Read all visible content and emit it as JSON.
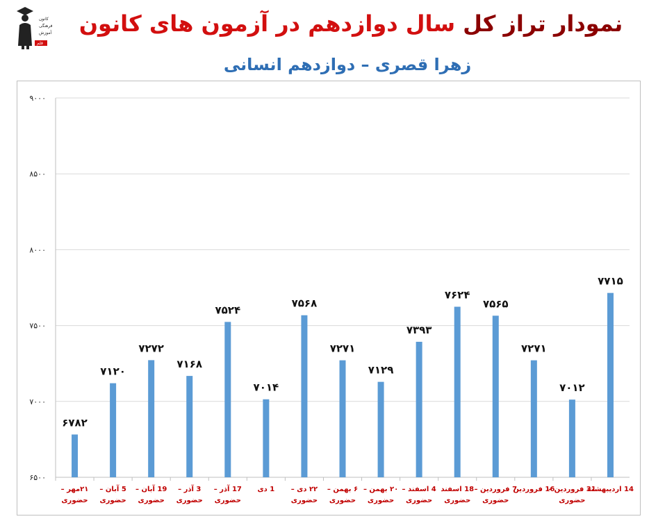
{
  "header": {
    "title_part1": "نمودار تراز کل",
    "title_part2": "سال دوازدهم در آزمون های کانون",
    "subtitle": "زهرا قصری – دوازدهم انسانی"
  },
  "logo": {
    "line1": "کانون",
    "line2": "فرهنگی",
    "line3": "آموزش",
    "badge": "قلم چی"
  },
  "colors": {
    "bar": "#5b9bd5",
    "axis_label": "#c00000",
    "title": "#d20f0f",
    "subtitle": "#2e6eb4",
    "grid": "#d9d9d9"
  },
  "chart_data": {
    "type": "bar",
    "title": "نمودار تراز کل سال دوازدهم در آزمون های کانون",
    "subtitle": "زهرا قصری – دوازدهم انسانی",
    "ylim": [
      6500,
      9000
    ],
    "yticks": [
      "۶۵۰۰",
      "۷۰۰۰",
      "۷۵۰۰",
      "۸۰۰۰",
      "۸۵۰۰",
      "۹۰۰۰"
    ],
    "ytick_values": [
      6500,
      7000,
      7500,
      8000,
      8500,
      9000
    ],
    "grid": true,
    "categories": [
      [
        "۲۱مهر –",
        "حضوری"
      ],
      [
        "5 آبان –",
        "حضوری"
      ],
      [
        "19 آبان –",
        "حضوری"
      ],
      [
        "3 آذر –",
        "حضوری"
      ],
      [
        "17 آذر –",
        "حضوری"
      ],
      [
        "1 دی",
        ""
      ],
      [
        "۲۲ دی –",
        "حضوری"
      ],
      [
        "۶ بهمن –",
        "حضوری"
      ],
      [
        "۲۰ بهمن –",
        "حضوری"
      ],
      [
        "4 اسفند –",
        "حضوری"
      ],
      [
        "18 اسفند",
        "حضوری"
      ],
      [
        "7 فروردین –",
        "حضوری"
      ],
      [
        "16 فروردین",
        ""
      ],
      [
        "31 فروردین –",
        "حضوری"
      ],
      [
        "14 اردیبهشت",
        ""
      ]
    ],
    "values": [
      6782,
      7120,
      7272,
      7168,
      7524,
      7014,
      7568,
      7271,
      7129,
      7393,
      7624,
      7565,
      7271,
      7012,
      7715
    ],
    "value_labels": [
      "۶۷۸۲",
      "۷۱۲۰",
      "۷۲۷۲",
      "۷۱۶۸",
      "۷۵۲۴",
      "۷۰۱۴",
      "۷۵۶۸",
      "۷۲۷۱",
      "۷۱۲۹",
      "۷۳۹۳",
      "۷۶۲۴",
      "۷۵۶۵",
      "۷۲۷۱",
      "۷۰۱۲",
      "۷۷۱۵"
    ]
  }
}
